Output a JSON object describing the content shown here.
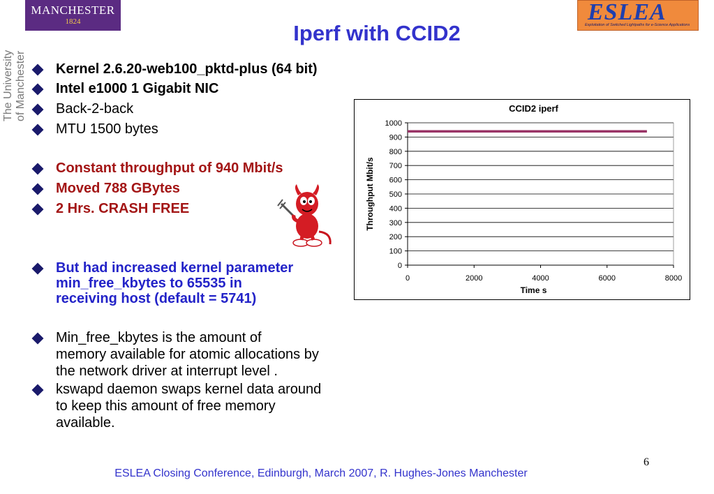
{
  "logos": {
    "manchester_line1": "MANCHESTER",
    "manchester_line2": "1824",
    "university_vertical_1": "The University",
    "university_vertical_2": "of Manchester",
    "eslea_word": "ESLEA",
    "eslea_tagline": "Exploitation of Switched Lightpaths for e-Science Applications"
  },
  "title": "Iperf with CCID2",
  "bullets": [
    {
      "text": "Kernel  2.6.20-web100_pktd-plus (64 bit)",
      "style": "bold"
    },
    {
      "text": "Intel e1000 1 Gigabit  NIC",
      "style": "bold"
    },
    {
      "text": "Back-2-back",
      "style": "normal"
    },
    {
      "text": "MTU 1500 bytes",
      "style": "normal"
    },
    {
      "text": "Constant throughput of 940 Mbit/s",
      "style": "red"
    },
    {
      "text": "Moved 788 GBytes",
      "style": "red"
    },
    {
      "text": "2 Hrs. CRASH FREE",
      "style": "red"
    }
  ],
  "kernel_param": {
    "lines": [
      "But had increased kernel parameter",
      "min_free_kbytes to 65535 in",
      "receiving host (default = 5741)"
    ]
  },
  "min_free_note": {
    "lines": [
      "Min_free_kbytes is the amount of",
      "memory available for atomic allocations by",
      "the network driver at interrupt level ."
    ]
  },
  "kswapd_note": {
    "lines": [
      "kswapd daemon swaps kernel data around",
      "to keep this amount of free memory",
      "available."
    ]
  },
  "chart_data": {
    "type": "line",
    "title": "CCID2 iperf",
    "xlabel": "Time s",
    "ylabel": "Throughput Mbit/s",
    "xlim": [
      0,
      8000
    ],
    "ylim": [
      0,
      1000
    ],
    "xticks": [
      0,
      2000,
      4000,
      6000,
      8000
    ],
    "yticks": [
      0,
      100,
      200,
      300,
      400,
      500,
      600,
      700,
      800,
      900,
      1000
    ],
    "grid": true,
    "series": [
      {
        "x": [
          0,
          7200
        ],
        "values": [
          940,
          940
        ],
        "color": "#993366"
      }
    ]
  },
  "footer": "ESLEA Closing Conference, Edinburgh, March 2007,  R. Hughes-Jones  Manchester",
  "page_number": "6",
  "colors": {
    "title": "#3333cc",
    "highlight_red": "#a31515",
    "highlight_blue": "#2323c8",
    "series": "#993366"
  }
}
